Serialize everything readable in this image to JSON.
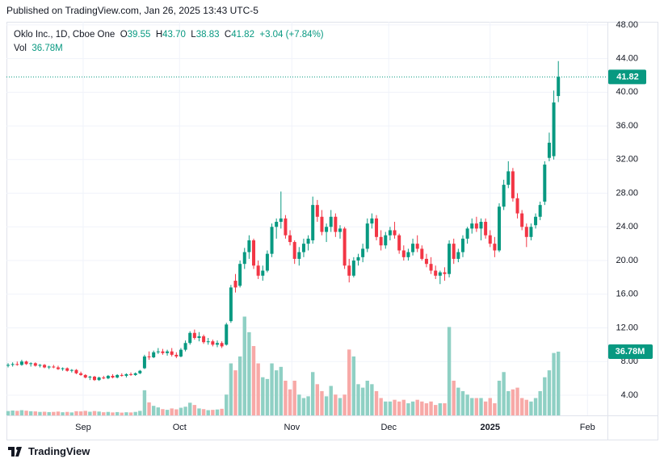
{
  "header": {
    "published": "Published on TradingView.com, Jan 26, 2025 13:43 UTC-5"
  },
  "legend": {
    "symbol": "Oklo Inc., 1D, Cboe One",
    "items": [
      {
        "key": "O",
        "value": "39.55"
      },
      {
        "key": "H",
        "value": "43.70"
      },
      {
        "key": "L",
        "value": "38.83"
      },
      {
        "key": "C",
        "value": "41.82"
      }
    ],
    "change": "+3.04 (+7.84%)",
    "vol_key": "Vol",
    "vol_value": "36.78M"
  },
  "chart_data": {
    "type": "candlestick",
    "ohlc": [
      [
        7.5,
        7.8,
        7.3,
        7.6
      ],
      [
        7.6,
        7.9,
        7.4,
        7.7
      ],
      [
        7.7,
        8.0,
        7.5,
        7.6
      ],
      [
        7.6,
        8.2,
        7.5,
        8.0
      ],
      [
        8.0,
        8.1,
        7.6,
        7.7
      ],
      [
        7.7,
        7.9,
        7.4,
        7.8
      ],
      [
        7.8,
        7.9,
        7.4,
        7.5
      ],
      [
        7.5,
        7.7,
        7.3,
        7.6
      ],
      [
        7.6,
        7.7,
        7.2,
        7.3
      ],
      [
        7.3,
        7.5,
        7.1,
        7.4
      ],
      [
        7.4,
        7.6,
        7.2,
        7.3
      ],
      [
        7.3,
        7.5,
        7.0,
        7.1
      ],
      [
        7.1,
        7.3,
        6.9,
        7.2
      ],
      [
        7.2,
        7.3,
        6.8,
        6.9
      ],
      [
        6.9,
        7.1,
        6.7,
        7.0
      ],
      [
        7.0,
        7.1,
        6.5,
        6.6
      ],
      [
        6.6,
        6.8,
        6.3,
        6.4
      ],
      [
        6.4,
        6.5,
        6.0,
        6.1
      ],
      [
        6.1,
        6.3,
        5.8,
        6.2
      ],
      [
        6.2,
        6.3,
        5.7,
        5.8
      ],
      [
        5.8,
        6.2,
        5.7,
        6.1
      ],
      [
        6.1,
        6.3,
        5.9,
        6.0
      ],
      [
        6.0,
        6.4,
        5.9,
        6.3
      ],
      [
        6.3,
        6.5,
        6.0,
        6.1
      ],
      [
        6.1,
        6.5,
        6.0,
        6.4
      ],
      [
        6.4,
        6.6,
        6.2,
        6.3
      ],
      [
        6.3,
        6.6,
        6.1,
        6.5
      ],
      [
        6.5,
        6.7,
        6.3,
        6.4
      ],
      [
        6.4,
        6.7,
        6.3,
        6.6
      ],
      [
        6.6,
        7.0,
        6.5,
        6.9
      ],
      [
        7.2,
        8.8,
        7.1,
        8.6
      ],
      [
        8.6,
        9.2,
        8.2,
        8.5
      ],
      [
        8.5,
        9.3,
        8.4,
        9.1
      ],
      [
        9.1,
        9.6,
        8.9,
        9.2
      ],
      [
        9.2,
        9.5,
        8.8,
        9.0
      ],
      [
        9.0,
        9.4,
        8.7,
        9.2
      ],
      [
        9.2,
        9.6,
        8.6,
        8.8
      ],
      [
        8.8,
        9.1,
        8.4,
        8.6
      ],
      [
        8.6,
        9.6,
        8.5,
        9.4
      ],
      [
        9.4,
        10.5,
        9.2,
        10.2
      ],
      [
        10.2,
        11.6,
        10.0,
        11.4
      ],
      [
        11.4,
        11.8,
        10.6,
        10.8
      ],
      [
        10.8,
        11.5,
        10.4,
        11.0
      ],
      [
        11.0,
        11.2,
        10.1,
        10.3
      ],
      [
        10.3,
        10.8,
        10.0,
        10.4
      ],
      [
        10.4,
        10.6,
        9.8,
        10.0
      ],
      [
        10.0,
        10.5,
        9.7,
        10.2
      ],
      [
        10.2,
        10.4,
        9.6,
        9.8
      ],
      [
        10.0,
        12.6,
        9.9,
        12.4
      ],
      [
        12.8,
        17.1,
        12.6,
        16.8
      ],
      [
        17.6,
        18.4,
        16.2,
        16.8
      ],
      [
        17.0,
        20.0,
        16.8,
        19.6
      ],
      [
        19.6,
        21.5,
        19.0,
        21.0
      ],
      [
        21.0,
        23.0,
        20.2,
        22.4
      ],
      [
        22.4,
        22.6,
        19.0,
        19.4
      ],
      [
        19.4,
        20.0,
        17.8,
        18.2
      ],
      [
        18.2,
        19.4,
        17.6,
        18.8
      ],
      [
        18.8,
        21.2,
        18.6,
        20.8
      ],
      [
        20.8,
        24.4,
        20.4,
        24.0
      ],
      [
        24.0,
        25.0,
        22.6,
        24.6
      ],
      [
        24.6,
        28.2,
        23.8,
        25.0
      ],
      [
        25.0,
        25.4,
        22.6,
        23.0
      ],
      [
        23.0,
        23.6,
        21.8,
        22.2
      ],
      [
        22.2,
        22.4,
        19.6,
        20.2
      ],
      [
        20.2,
        21.6,
        19.4,
        21.0
      ],
      [
        21.0,
        22.6,
        20.4,
        22.0
      ],
      [
        22.0,
        23.0,
        21.2,
        22.6
      ],
      [
        22.4,
        27.6,
        22.0,
        26.6
      ],
      [
        26.6,
        27.2,
        24.6,
        25.2
      ],
      [
        25.2,
        26.0,
        23.0,
        23.4
      ],
      [
        23.4,
        24.4,
        22.2,
        24.0
      ],
      [
        24.0,
        26.0,
        23.4,
        25.2
      ],
      [
        25.2,
        25.6,
        22.8,
        23.4
      ],
      [
        23.4,
        24.2,
        22.6,
        23.8
      ],
      [
        23.8,
        24.0,
        19.0,
        19.4
      ],
      [
        19.4,
        20.2,
        17.4,
        18.2
      ],
      [
        18.2,
        20.4,
        18.0,
        20.0
      ],
      [
        20.0,
        20.8,
        19.4,
        20.4
      ],
      [
        20.4,
        22.0,
        19.8,
        21.4
      ],
      [
        21.4,
        25.0,
        21.0,
        24.4
      ],
      [
        24.4,
        25.6,
        23.8,
        25.0
      ],
      [
        25.0,
        25.4,
        22.4,
        22.8
      ],
      [
        22.8,
        23.6,
        21.2,
        21.8
      ],
      [
        21.8,
        23.4,
        21.4,
        23.0
      ],
      [
        23.0,
        24.0,
        22.4,
        23.6
      ],
      [
        23.6,
        24.6,
        22.6,
        23.0
      ],
      [
        23.0,
        23.2,
        20.8,
        21.2
      ],
      [
        21.2,
        21.8,
        20.0,
        20.4
      ],
      [
        20.4,
        21.4,
        20.0,
        21.0
      ],
      [
        21.0,
        22.6,
        20.6,
        22.0
      ],
      [
        22.0,
        23.0,
        21.0,
        21.4
      ],
      [
        21.4,
        21.8,
        20.0,
        20.2
      ],
      [
        20.2,
        20.8,
        19.2,
        19.6
      ],
      [
        19.6,
        20.4,
        18.4,
        18.8
      ],
      [
        18.8,
        19.4,
        17.8,
        18.2
      ],
      [
        18.2,
        18.8,
        17.2,
        18.6
      ],
      [
        18.6,
        19.2,
        17.6,
        18.4
      ],
      [
        18.4,
        22.4,
        18.0,
        22.0
      ],
      [
        22.0,
        22.6,
        19.6,
        20.2
      ],
      [
        20.2,
        21.4,
        19.8,
        21.0
      ],
      [
        21.0,
        23.0,
        20.4,
        22.6
      ],
      [
        22.6,
        24.0,
        22.0,
        23.8
      ],
      [
        23.8,
        25.0,
        23.2,
        24.4
      ],
      [
        24.4,
        25.2,
        23.4,
        23.8
      ],
      [
        23.8,
        25.0,
        22.4,
        24.6
      ],
      [
        24.6,
        25.0,
        22.6,
        23.0
      ],
      [
        23.0,
        23.6,
        21.6,
        22.0
      ],
      [
        22.0,
        22.8,
        20.4,
        21.2
      ],
      [
        21.2,
        26.8,
        21.0,
        26.4
      ],
      [
        26.4,
        29.6,
        26.0,
        29.0
      ],
      [
        29.0,
        31.8,
        28.6,
        30.6
      ],
      [
        30.6,
        31.0,
        27.0,
        27.4
      ],
      [
        27.4,
        28.0,
        25.0,
        25.6
      ],
      [
        25.6,
        26.0,
        23.6,
        24.0
      ],
      [
        24.0,
        24.4,
        21.6,
        22.8
      ],
      [
        22.8,
        24.4,
        22.4,
        24.0
      ],
      [
        24.2,
        25.6,
        23.8,
        25.2
      ],
      [
        25.2,
        27.0,
        24.8,
        26.6
      ],
      [
        27.0,
        31.8,
        26.6,
        31.4
      ],
      [
        32.2,
        35.2,
        31.8,
        34.0
      ],
      [
        32.4,
        40.2,
        32.0,
        38.78
      ],
      [
        39.55,
        43.7,
        38.83,
        41.82
      ]
    ],
    "volume": [
      2.5,
      2.8,
      2.6,
      3.0,
      2.7,
      2.4,
      2.3,
      2.0,
      2.1,
      1.9,
      2.0,
      2.2,
      1.8,
      2.0,
      1.7,
      2.4,
      2.3,
      2.6,
      2.1,
      2.5,
      2.2,
      1.8,
      2.0,
      1.7,
      1.9,
      1.6,
      1.8,
      1.7,
      2.0,
      2.6,
      14.5,
      7.5,
      5.5,
      4.6,
      3.6,
      3.2,
      4.0,
      3.5,
      4.4,
      5.0,
      7.3,
      6.0,
      4.0,
      3.6,
      3.0,
      3.2,
      3.4,
      3.8,
      12.0,
      30,
      26,
      34,
      57,
      48,
      40,
      30,
      22,
      21,
      30,
      26,
      28,
      20,
      15,
      20,
      12,
      10,
      11,
      25,
      18,
      14,
      11,
      17,
      12,
      10,
      12,
      38,
      34,
      18,
      16,
      20,
      18,
      14,
      10,
      8,
      8,
      9,
      8,
      9,
      7,
      8,
      9,
      8,
      7,
      8,
      6,
      7,
      7,
      51,
      20,
      16,
      14,
      12,
      10,
      10,
      10,
      8,
      10,
      7,
      20,
      25,
      14,
      15,
      16,
      10,
      9,
      8,
      10,
      14,
      22,
      26,
      36,
      36.78
    ],
    "up_color": "#089981",
    "down_color": "#f23645",
    "volume_up_color": "#8fd0c4",
    "volume_down_color": "#f7a9a7",
    "ylim": [
      1.6,
      50
    ],
    "yticks": [
      {
        "value": 4,
        "label": "4.00"
      },
      {
        "value": 8,
        "label": "8.00"
      },
      {
        "value": 12,
        "label": "12.00"
      },
      {
        "value": 16,
        "label": "16.00"
      },
      {
        "value": 20,
        "label": "20.00"
      },
      {
        "value": 24,
        "label": "24.00"
      },
      {
        "value": 28,
        "label": "28.00"
      },
      {
        "value": 32,
        "label": "32.00"
      },
      {
        "value": 36,
        "label": "36.00"
      },
      {
        "value": 40,
        "label": "40.00"
      },
      {
        "value": 44,
        "label": "44.00"
      },
      {
        "value": 48,
        "label": "48.00"
      }
    ],
    "xlim": [
      -0.36,
      131.8
    ],
    "xticks": [
      {
        "value": 16.5,
        "label": "Sep"
      },
      {
        "value": 37.7,
        "label": "Oct"
      },
      {
        "value": 62.4,
        "label": "Nov"
      },
      {
        "value": 83.7,
        "label": "Dec"
      },
      {
        "value": 106.0,
        "label": "2025"
      },
      {
        "value": 127.4,
        "label": "Feb"
      }
    ],
    "y2lim": [
      0,
      235
    ],
    "grid": true,
    "last_price_label": "41.82",
    "last_volume_label": "36.78M"
  },
  "footer": {
    "brand": "TradingView"
  }
}
